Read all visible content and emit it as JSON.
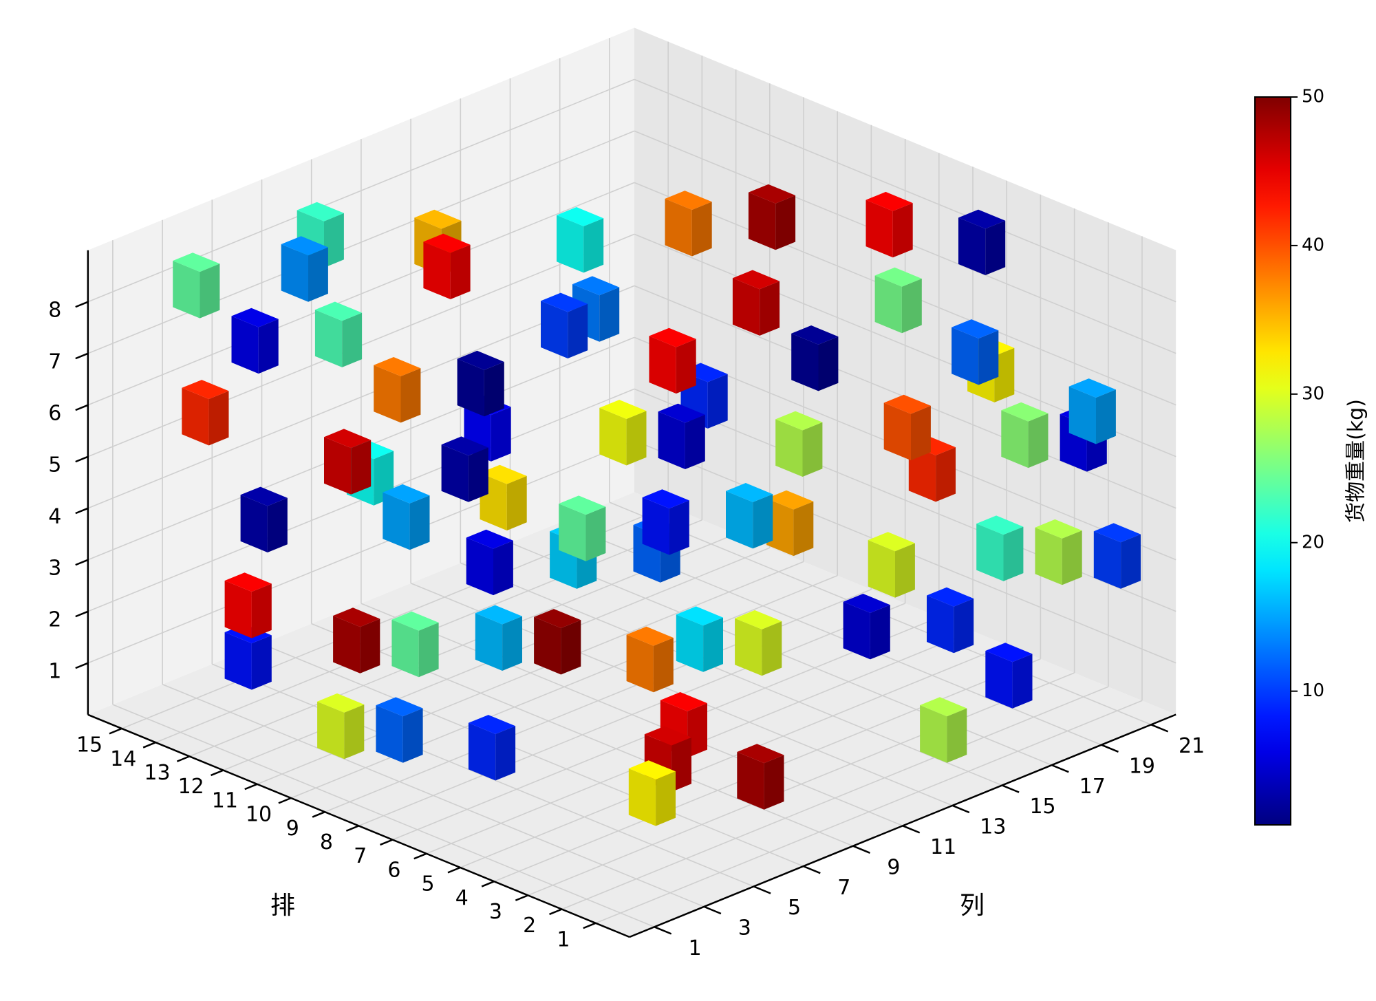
{
  "chart_data": {
    "type": "voxel3d",
    "xlabel": "排",
    "ylabel": "列",
    "colorbar_label": "货物重量(kg)",
    "colormap": "jet",
    "xlim": [
      0,
      16
    ],
    "ylim": [
      0,
      22
    ],
    "zlim": [
      0,
      9
    ],
    "clim": [
      1,
      50
    ],
    "xticks": [
      1,
      2,
      3,
      4,
      5,
      6,
      7,
      8,
      9,
      10,
      11,
      12,
      13,
      14,
      15
    ],
    "yticks": [
      1,
      3,
      5,
      7,
      9,
      11,
      13,
      15,
      17,
      19,
      21
    ],
    "zticks": [
      1,
      2,
      3,
      4,
      5,
      6,
      7,
      8
    ],
    "cticks": [
      10,
      20,
      30,
      40,
      50
    ],
    "grid": true,
    "x": [
      3,
      2,
      4,
      5,
      6,
      1,
      2,
      7,
      10,
      9,
      12,
      12,
      11,
      10,
      9,
      8,
      6,
      5,
      4,
      3,
      2,
      5,
      7,
      8,
      9,
      10,
      11,
      13,
      14,
      12,
      10,
      8,
      7,
      6,
      4,
      3,
      1,
      2,
      3,
      5,
      6,
      8,
      9,
      11,
      12,
      14,
      13,
      10,
      9,
      7,
      4,
      1,
      3,
      6,
      8,
      11,
      13,
      15,
      15,
      14,
      12,
      10,
      7,
      5,
      9,
      12,
      13,
      15,
      14,
      11
    ],
    "y": [
      5,
      8,
      7,
      9,
      11,
      14,
      18,
      4,
      2,
      3,
      1,
      1,
      4,
      5,
      7,
      8,
      9,
      12,
      15,
      17,
      20,
      19,
      16,
      12,
      10,
      8,
      6,
      3,
      2,
      5,
      7,
      9,
      11,
      13,
      16,
      19,
      21,
      21,
      20,
      18,
      15,
      13,
      12,
      9,
      7,
      4,
      6,
      11,
      14,
      17,
      20,
      20,
      18,
      19,
      16,
      13,
      10,
      8,
      3,
      6,
      9,
      16,
      20,
      21,
      18,
      15,
      12,
      10,
      14,
      18
    ],
    "z": [
      1,
      1,
      1,
      1,
      2,
      1,
      1,
      1,
      1,
      1,
      2,
      3,
      2,
      2,
      2,
      2,
      2,
      2,
      2,
      2,
      3,
      4,
      3,
      3,
      3,
      3,
      4,
      4,
      6,
      5,
      5,
      4,
      4,
      4,
      3,
      3,
      3,
      5,
      5,
      5,
      5,
      5,
      5,
      6,
      6,
      7,
      7,
      7,
      6,
      6,
      6,
      6,
      7,
      7,
      7,
      8,
      8,
      8,
      8,
      8,
      8,
      8,
      8,
      8,
      8,
      6,
      4,
      3,
      2,
      4
    ],
    "values": [
      32,
      48,
      46,
      44,
      18,
      28,
      8,
      9,
      30,
      12,
      8,
      44,
      48,
      24,
      16,
      49,
      38,
      30,
      5,
      9,
      28,
      42,
      36,
      12,
      17,
      6,
      15,
      3,
      42,
      46,
      3,
      24,
      8,
      16,
      30,
      22,
      10,
      6,
      26,
      40,
      28,
      5,
      31,
      2,
      38,
      6,
      23,
      10,
      44,
      2,
      32,
      15,
      12,
      25,
      46,
      20,
      35,
      22,
      24,
      14,
      44,
      38,
      44,
      3,
      48,
      13,
      7,
      20,
      33,
      9
    ]
  }
}
